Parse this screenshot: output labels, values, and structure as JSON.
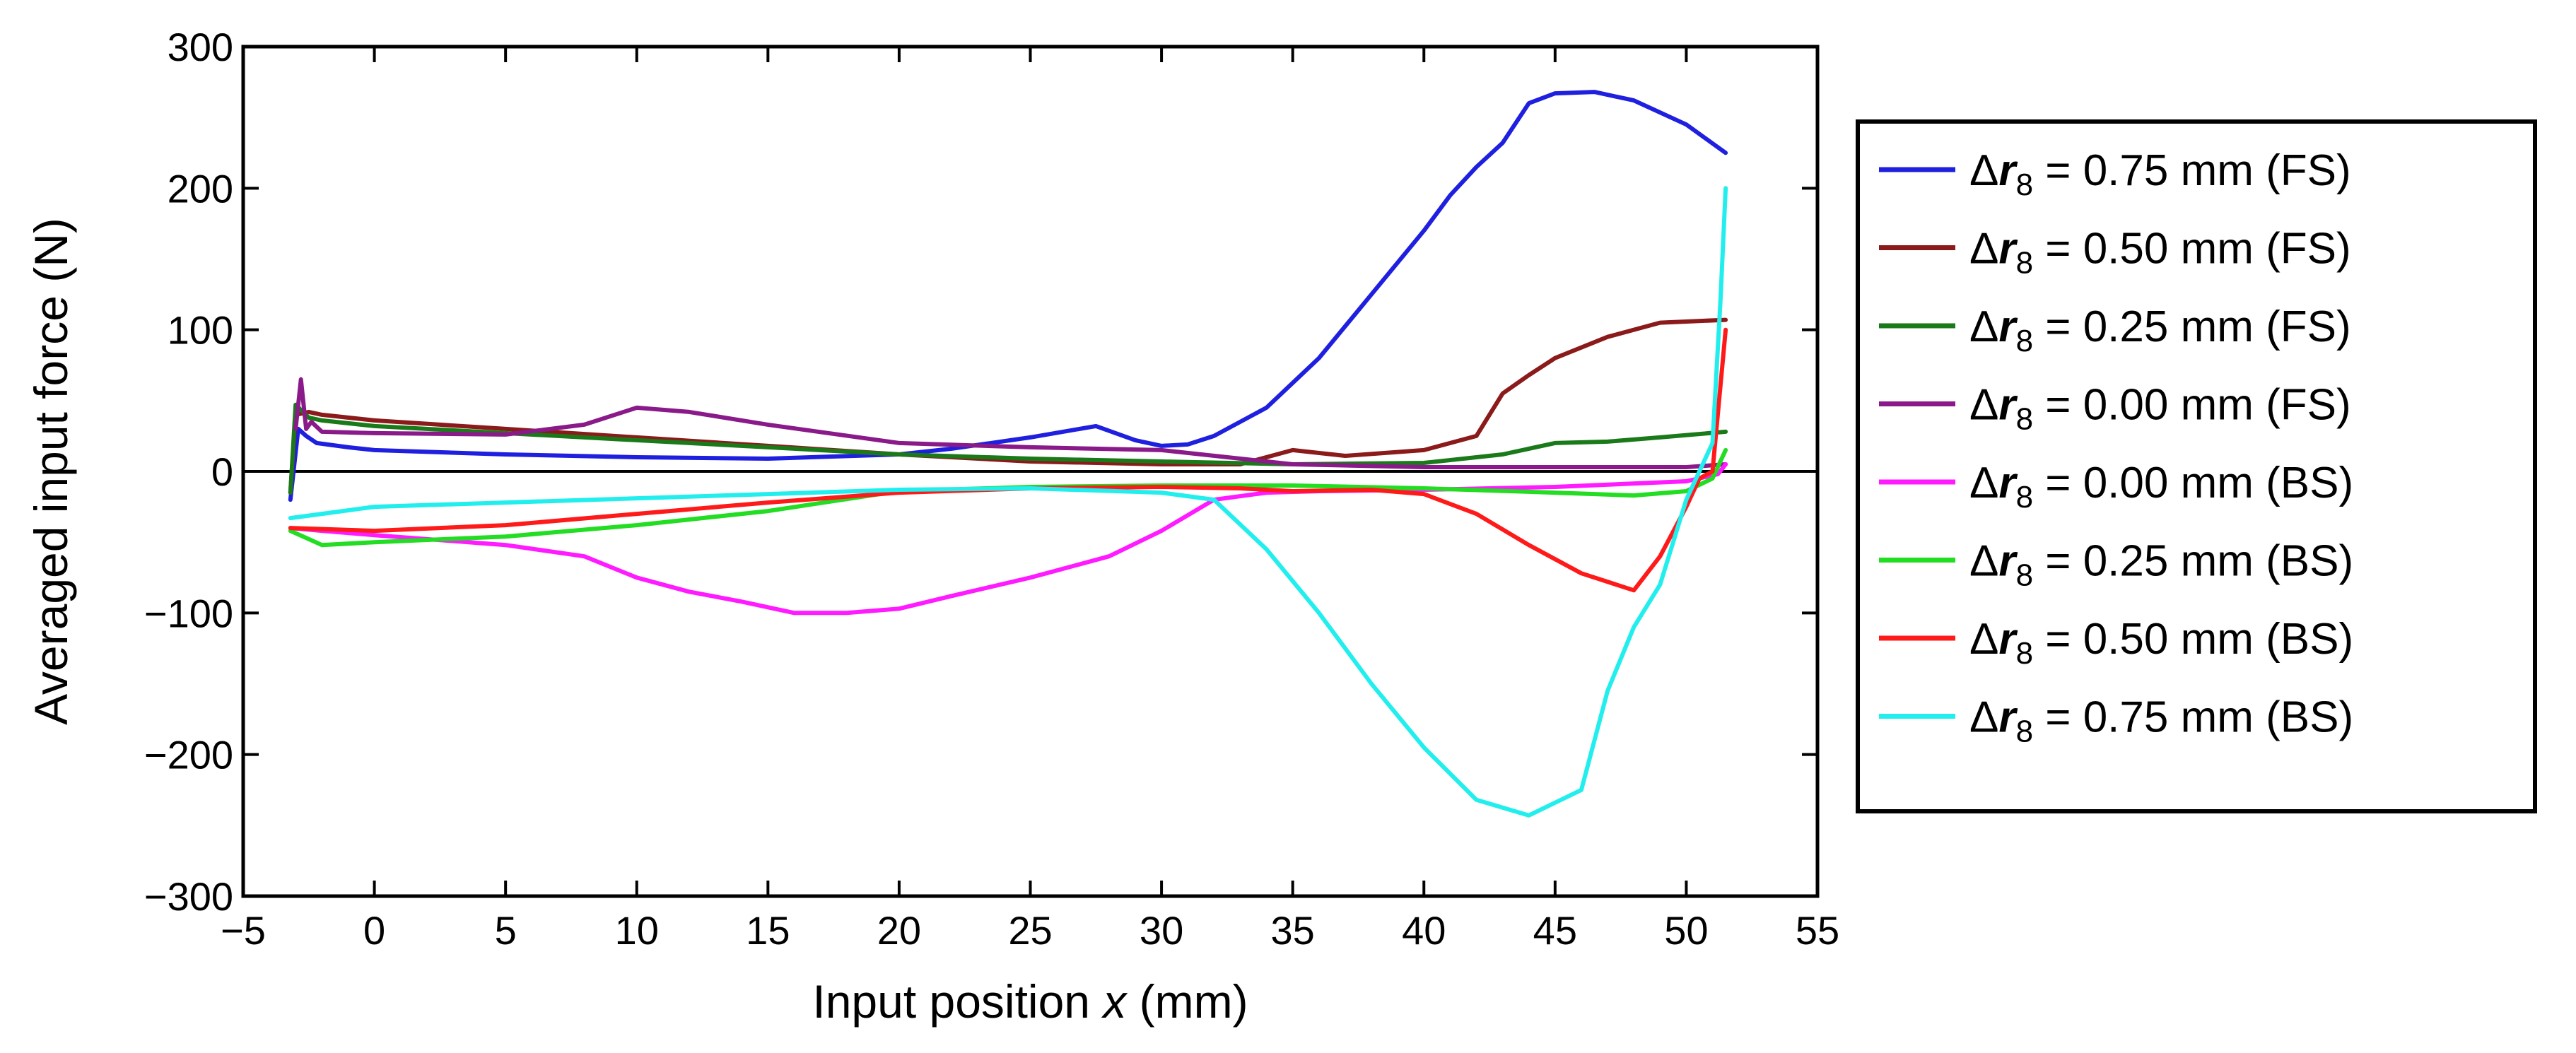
{
  "chart_data": {
    "type": "line",
    "title": "",
    "xlabel": "Input position",
    "xlabel_var": "x",
    "xlabel_unit": "(mm)",
    "ylabel": "Averaged input force (N)",
    "xlim": [
      -5,
      55
    ],
    "ylim": [
      -300,
      300
    ],
    "xticks": [
      -5,
      0,
      5,
      10,
      15,
      20,
      25,
      30,
      35,
      40,
      45,
      50,
      55
    ],
    "yticks": [
      -300,
      -200,
      -100,
      0,
      100,
      200,
      300
    ],
    "xtick_labels": [
      "−5",
      "0",
      "5",
      "10",
      "15",
      "20",
      "25",
      "30",
      "35",
      "40",
      "45",
      "50",
      "55"
    ],
    "ytick_labels": [
      "−300",
      "−200",
      "−100",
      "0",
      "100",
      "200",
      "300"
    ],
    "grid": false,
    "zero_line": true,
    "legend_position": "right",
    "series": [
      {
        "name": "Δr8 = 0.75 mm (FS)",
        "legend": {
          "prefix": "Δ",
          "var": "r",
          "sub": "8",
          "text": " = 0.75 mm (FS)"
        },
        "color": "#1f1fe0",
        "x": [
          -3.2,
          -2.9,
          -2.6,
          -2.2,
          -1,
          0,
          5,
          10,
          15,
          20,
          22,
          25,
          27.5,
          29,
          30,
          31,
          32,
          34,
          36,
          38,
          40,
          41,
          42,
          43,
          44,
          45,
          46.5,
          48,
          50,
          51.5
        ],
        "y": [
          -20,
          30,
          25,
          20,
          17,
          15,
          12,
          10,
          9,
          12,
          16,
          24,
          32,
          22,
          18,
          19,
          25,
          45,
          80,
          125,
          170,
          195,
          215,
          232,
          260,
          267,
          268,
          262,
          245,
          225
        ]
      },
      {
        "name": "Δr8 = 0.50 mm (FS)",
        "legend": {
          "prefix": "Δ",
          "var": "r",
          "sub": "8",
          "text": " = 0.50 mm (FS)"
        },
        "color": "#8b1a1a",
        "x": [
          -3.2,
          -3,
          -2.5,
          -2,
          0,
          5,
          10,
          15,
          20,
          25,
          30,
          33,
          35,
          37,
          40,
          42,
          43,
          44,
          45,
          47,
          49,
          51.5
        ],
        "y": [
          -15,
          40,
          42,
          40,
          36,
          30,
          24,
          18,
          12,
          7,
          5,
          5,
          15,
          11,
          15,
          25,
          55,
          68,
          80,
          95,
          105,
          107
        ]
      },
      {
        "name": "Δr8 = 0.25 mm (FS)",
        "legend": {
          "prefix": "Δ",
          "var": "r",
          "sub": "8",
          "text": " = 0.25 mm (FS)"
        },
        "color": "#1a7a1a",
        "x": [
          -3.2,
          -3,
          -2.5,
          -2,
          0,
          5,
          10,
          15,
          20,
          25,
          30,
          35,
          40,
          43,
          45,
          47,
          49,
          51.5
        ],
        "y": [
          -15,
          47,
          38,
          36,
          32,
          27,
          22,
          17,
          12,
          9,
          7,
          5,
          6,
          12,
          20,
          21,
          24,
          28
        ]
      },
      {
        "name": "Δr8 = 0.00 mm (FS)",
        "legend": {
          "prefix": "Δ",
          "var": "r",
          "sub": "8",
          "text": " = 0.00 mm (FS)"
        },
        "color": "#8a1a8a",
        "x": [
          -3,
          -2.8,
          -2.6,
          -2.4,
          -2,
          0,
          5,
          8,
          10,
          12,
          15,
          20,
          25,
          30,
          35,
          40,
          45,
          50,
          51.5
        ],
        "y": [
          30,
          65,
          30,
          35,
          28,
          27,
          26,
          33,
          45,
          42,
          33,
          20,
          17,
          15,
          5,
          3,
          3,
          3,
          5
        ]
      },
      {
        "name": "Δr8 = 0.00 mm (BS)",
        "legend": {
          "prefix": "Δ",
          "var": "r",
          "sub": "8",
          "text": " = 0.00 mm (BS)"
        },
        "color": "#ff1aff",
        "x": [
          -3.2,
          -2,
          0,
          5,
          8,
          10,
          12,
          14,
          16,
          18,
          20,
          22,
          25,
          28,
          30,
          32,
          34,
          36,
          40,
          45,
          50,
          51.2,
          51.5
        ],
        "y": [
          -40,
          -42,
          -45,
          -52,
          -60,
          -75,
          -85,
          -92,
          -100,
          -100,
          -97,
          -88,
          -75,
          -60,
          -42,
          -20,
          -15,
          -14,
          -13,
          -11,
          -7,
          -2,
          5
        ]
      },
      {
        "name": "Δr8 = 0.25 mm (BS)",
        "legend": {
          "prefix": "Δ",
          "var": "r",
          "sub": "8",
          "text": " = 0.25 mm (BS)"
        },
        "color": "#22dd22",
        "x": [
          -3.2,
          -2,
          0,
          5,
          10,
          15,
          20,
          25,
          30,
          35,
          40,
          45,
          48,
          50,
          51,
          51.5
        ],
        "y": [
          -42,
          -52,
          -50,
          -46,
          -38,
          -28,
          -14,
          -11,
          -10,
          -10,
          -12,
          -15,
          -17,
          -14,
          -5,
          15
        ]
      },
      {
        "name": "Δr8 = 0.50 mm (BS)",
        "legend": {
          "prefix": "Δ",
          "var": "r",
          "sub": "8",
          "text": " = 0.50 mm (BS)"
        },
        "color": "#ff1a1a",
        "x": [
          -3.2,
          0,
          5,
          10,
          15,
          20,
          25,
          30,
          33,
          35,
          38,
          40,
          42,
          44,
          46,
          48,
          49,
          50,
          50.5,
          51,
          51.5
        ],
        "y": [
          -40,
          -42,
          -38,
          -30,
          -22,
          -15,
          -12,
          -11,
          -12,
          -14,
          -13,
          -16,
          -30,
          -52,
          -72,
          -84,
          -60,
          -25,
          -5,
          0,
          100
        ]
      },
      {
        "name": "Δr8 = 0.75 mm (BS)",
        "legend": {
          "prefix": "Δ",
          "var": "r",
          "sub": "8",
          "text": " = 0.75 mm (BS)"
        },
        "color": "#22eeee",
        "x": [
          -3.2,
          -2,
          0,
          5,
          10,
          15,
          20,
          25,
          30,
          32,
          34,
          36,
          38,
          40,
          42,
          44,
          46,
          47,
          48,
          49,
          50,
          51,
          51.3,
          51.5
        ],
        "y": [
          -33,
          -30,
          -25,
          -22,
          -19,
          -16,
          -13,
          -12,
          -15,
          -20,
          -55,
          -100,
          -150,
          -195,
          -232,
          -243,
          -225,
          -155,
          -110,
          -80,
          -20,
          20,
          120,
          200
        ]
      }
    ]
  }
}
